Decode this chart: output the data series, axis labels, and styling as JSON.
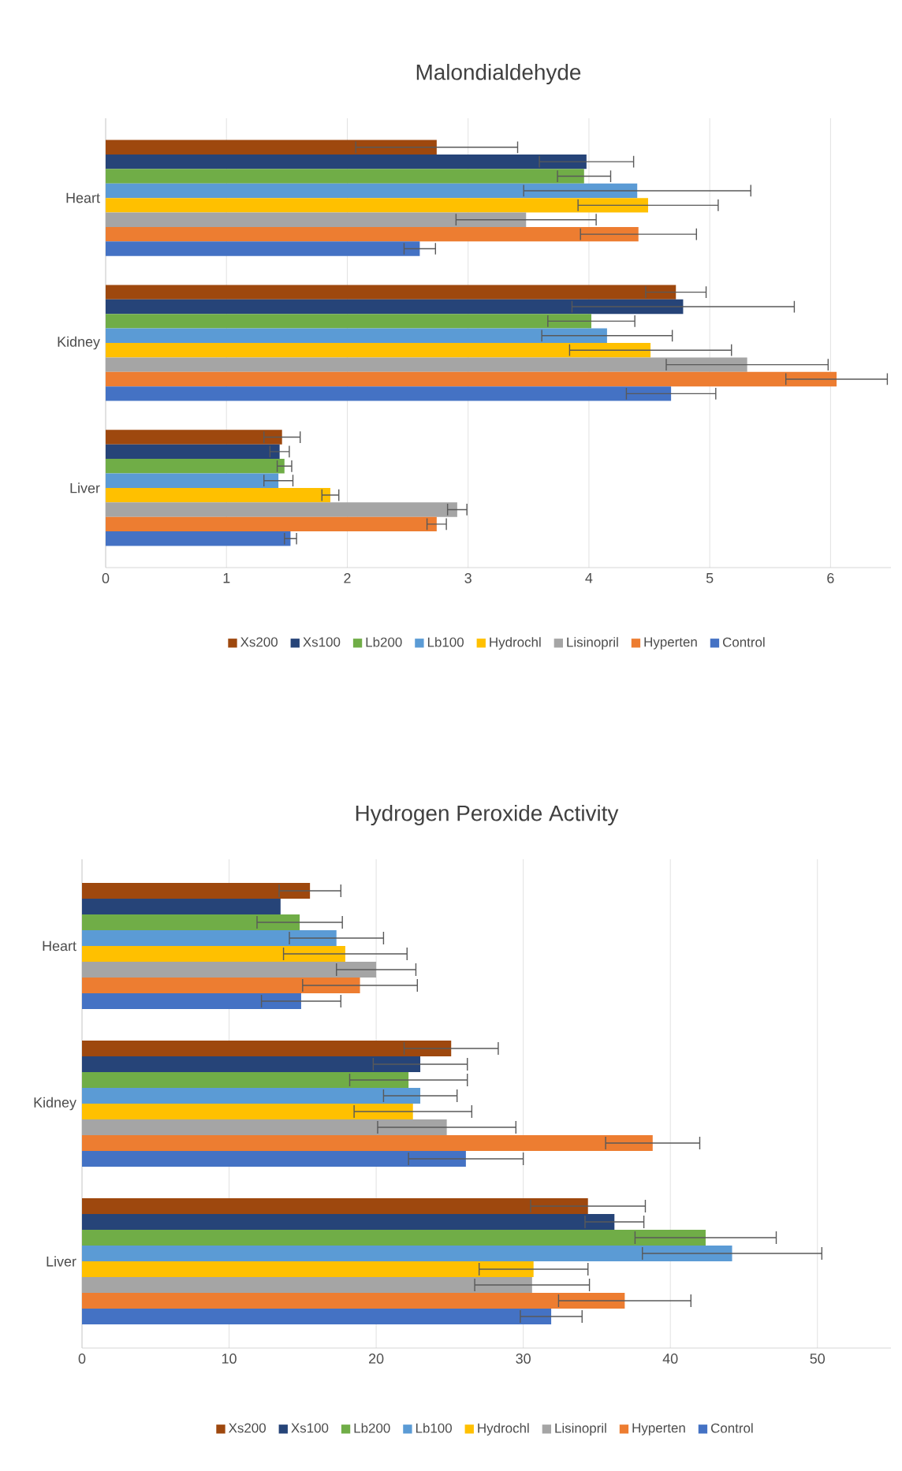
{
  "chart_data": [
    {
      "type": "bar",
      "orientation": "horizontal",
      "title": "Malondialdehyde",
      "categories": [
        "Heart",
        "Kidney",
        "Liver"
      ],
      "xlim": [
        0,
        6.5
      ],
      "xticks": [
        0,
        1,
        2,
        3,
        4,
        5,
        6
      ],
      "grid": "x",
      "legend": "bottom",
      "series": [
        {
          "name": "Xs200",
          "color": "#9e480e",
          "values": [
            2.74,
            4.72,
            1.46
          ],
          "errors": [
            0.67,
            0.25,
            0.15
          ]
        },
        {
          "name": "Xs100",
          "color": "#264478",
          "values": [
            3.98,
            4.78,
            1.44
          ],
          "errors": [
            0.39,
            0.92,
            0.08
          ]
        },
        {
          "name": "Lb200",
          "color": "#70ad47",
          "values": [
            3.96,
            4.02,
            1.48
          ],
          "errors": [
            0.22,
            0.36,
            0.06
          ]
        },
        {
          "name": "Lb100",
          "color": "#5b9bd5",
          "values": [
            4.4,
            4.15,
            1.43
          ],
          "errors": [
            0.94,
            0.54,
            0.12
          ]
        },
        {
          "name": "Hydrochl",
          "color": "#ffc000",
          "values": [
            4.49,
            4.51,
            1.86
          ],
          "errors": [
            0.58,
            0.67,
            0.07
          ]
        },
        {
          "name": "Lisinopril",
          "color": "#a5a5a5",
          "values": [
            3.48,
            5.31,
            2.91
          ],
          "errors": [
            0.58,
            0.67,
            0.08
          ]
        },
        {
          "name": "Hyperten",
          "color": "#ed7d31",
          "values": [
            4.41,
            6.05,
            2.74
          ],
          "errors": [
            0.48,
            0.42,
            0.08
          ]
        },
        {
          "name": "Control",
          "color": "#4472c4",
          "values": [
            2.6,
            4.68,
            1.53
          ],
          "errors": [
            0.13,
            0.37,
            0.05
          ]
        }
      ]
    },
    {
      "type": "bar",
      "orientation": "horizontal",
      "title": "Hydrogen Peroxide Activity",
      "categories": [
        "Heart",
        "Kidney",
        "Liver"
      ],
      "xlim": [
        0,
        55
      ],
      "xticks": [
        0,
        10,
        20,
        30,
        40,
        50
      ],
      "grid": "x",
      "legend": "bottom",
      "series": [
        {
          "name": "Xs200",
          "color": "#9e480e",
          "values": [
            15.5,
            25.1,
            34.4
          ],
          "errors": [
            2.1,
            3.2,
            3.9
          ]
        },
        {
          "name": "Xs100",
          "color": "#264478",
          "values": [
            13.5,
            23.0,
            36.2
          ],
          "errors": [
            null,
            3.2,
            2.0
          ]
        },
        {
          "name": "Lb200",
          "color": "#70ad47",
          "values": [
            14.8,
            22.2,
            42.4
          ],
          "errors": [
            2.9,
            4.0,
            4.8
          ]
        },
        {
          "name": "Lb100",
          "color": "#5b9bd5",
          "values": [
            17.3,
            23.0,
            44.2
          ],
          "errors": [
            3.2,
            2.5,
            6.1
          ]
        },
        {
          "name": "Hydrochl",
          "color": "#ffc000",
          "values": [
            17.9,
            22.5,
            30.7
          ],
          "errors": [
            4.2,
            4.0,
            3.7
          ]
        },
        {
          "name": "Lisinopril",
          "color": "#a5a5a5",
          "values": [
            20.0,
            24.8,
            30.6
          ],
          "errors": [
            2.7,
            4.7,
            3.9
          ]
        },
        {
          "name": "Hyperten",
          "color": "#ed7d31",
          "values": [
            18.9,
            38.8,
            36.9
          ],
          "errors": [
            3.9,
            3.2,
            4.5
          ]
        },
        {
          "name": "Control",
          "color": "#4472c4",
          "values": [
            14.9,
            26.1,
            31.9
          ],
          "errors": [
            2.7,
            3.9,
            2.1
          ]
        }
      ]
    }
  ]
}
